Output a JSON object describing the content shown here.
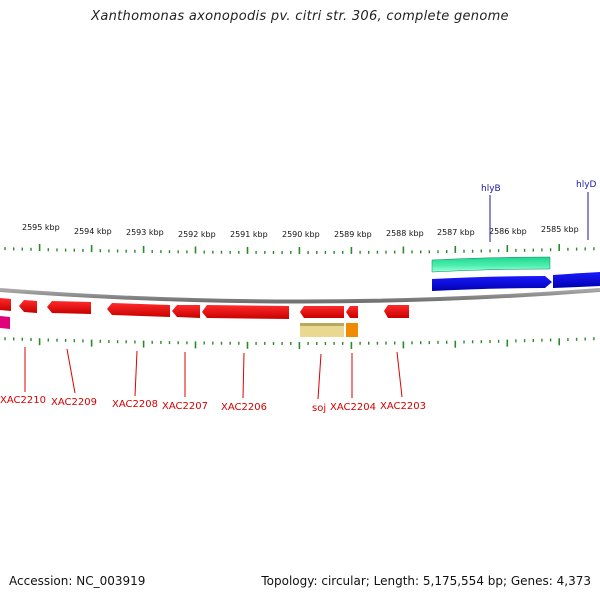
{
  "title": "Xanthomonas axonopodis pv. citri str. 306, complete genome",
  "footer": {
    "accession": "Accession: NC_003919",
    "summary": "Topology: circular; Length: 5,175,554 bp; Genes: 4,373"
  },
  "colors": {
    "red_gene": "#e00000",
    "magenta_gene": "#e0007a",
    "green_gene": "#3ee6a0",
    "blue_gene": "#0000e0",
    "yellow_gene": "#e8d890",
    "orange_gene": "#f08a00",
    "tick_green": "#2a8a2a",
    "backbone": "#888888"
  },
  "tick_labels": [
    "2595 kbp",
    "2594 kbp",
    "2593 kbp",
    "2592 kbp",
    "2591 kbp",
    "2590 kbp",
    "2589 kbp",
    "2588 kbp",
    "2587 kbp",
    "2586 kbp",
    "2585 kbp"
  ],
  "gene_labels_bottom": [
    "XAC2210",
    "XAC2209",
    "XAC2208",
    "XAC2207",
    "XAC2206",
    "soj",
    "XAC2204",
    "XAC2203"
  ],
  "gene_labels_top": [
    "hlyB",
    "hlyD"
  ]
}
